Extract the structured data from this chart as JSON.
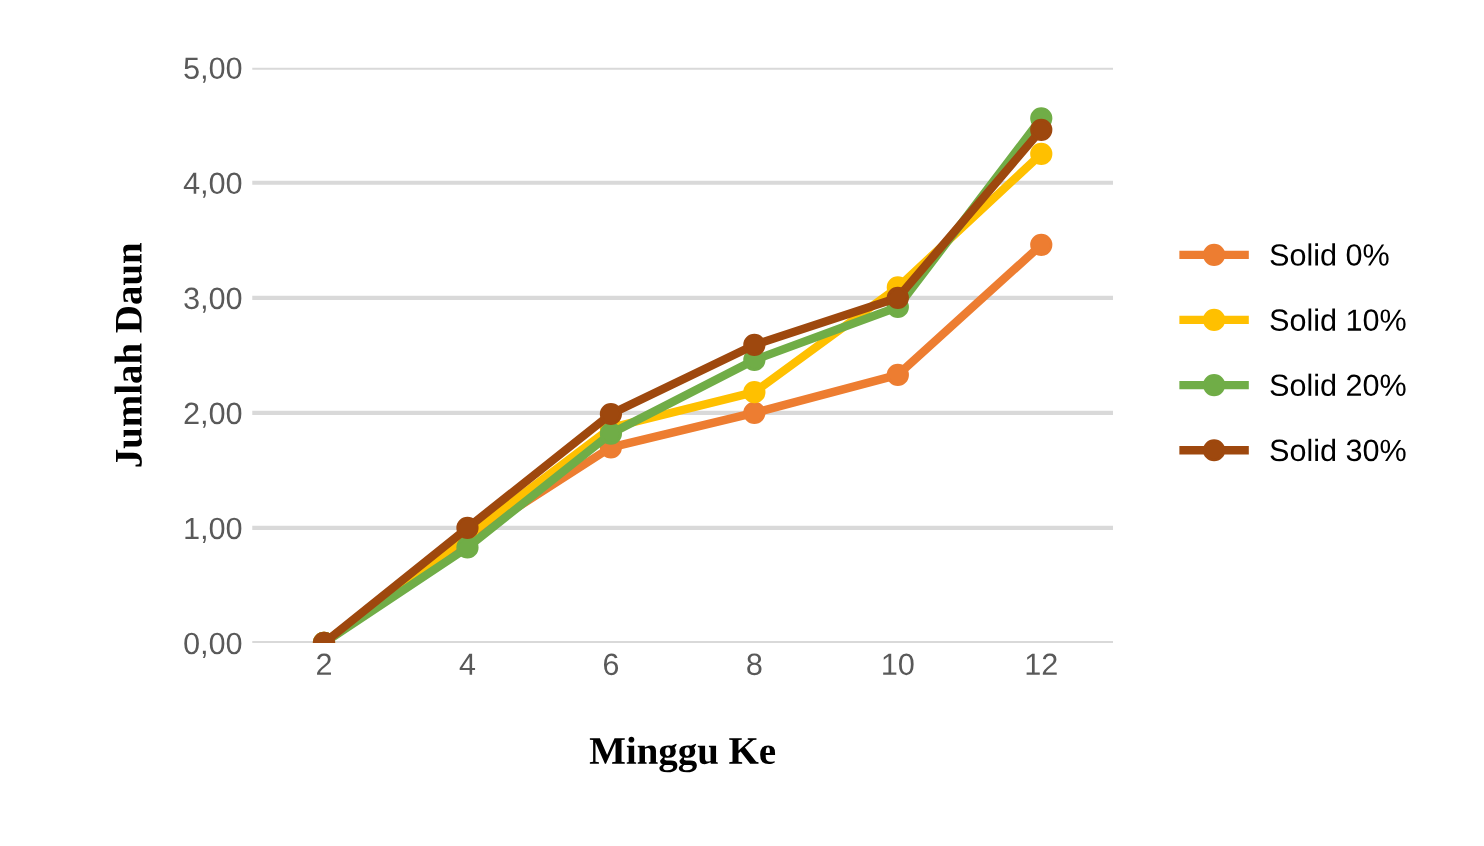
{
  "chart_data": {
    "type": "line",
    "xlabel": "Minggu Ke",
    "ylabel": "Jumlah Daun",
    "categories": [
      "2",
      "4",
      "6",
      "8",
      "10",
      "12"
    ],
    "series": [
      {
        "name": "Solid 0%",
        "color": "#ed7d31",
        "values": [
          0,
          0.9,
          1.7,
          2.0,
          2.33,
          3.46
        ]
      },
      {
        "name": "Solid 10%",
        "color": "#ffc000",
        "values": [
          0,
          0.93,
          1.87,
          2.18,
          3.09,
          4.25
        ]
      },
      {
        "name": "Solid 20%",
        "color": "#70ad47",
        "values": [
          0,
          0.83,
          1.82,
          2.46,
          2.92,
          4.56
        ]
      },
      {
        "name": "Solid 30%",
        "color": "#9e480e",
        "values": [
          0,
          1.0,
          1.99,
          2.59,
          3.0,
          4.46
        ]
      }
    ],
    "ylim": [
      0,
      5
    ],
    "yticks": [
      {
        "value": 0,
        "label": "0,00"
      },
      {
        "value": 1,
        "label": "1,00"
      },
      {
        "value": 2,
        "label": "2,00"
      },
      {
        "value": 3,
        "label": "3,00"
      },
      {
        "value": 4,
        "label": "4,00"
      },
      {
        "value": 5,
        "label": "5,00"
      }
    ],
    "grid": "y",
    "legend": "right",
    "marker": "circle",
    "line_style": "solid"
  }
}
